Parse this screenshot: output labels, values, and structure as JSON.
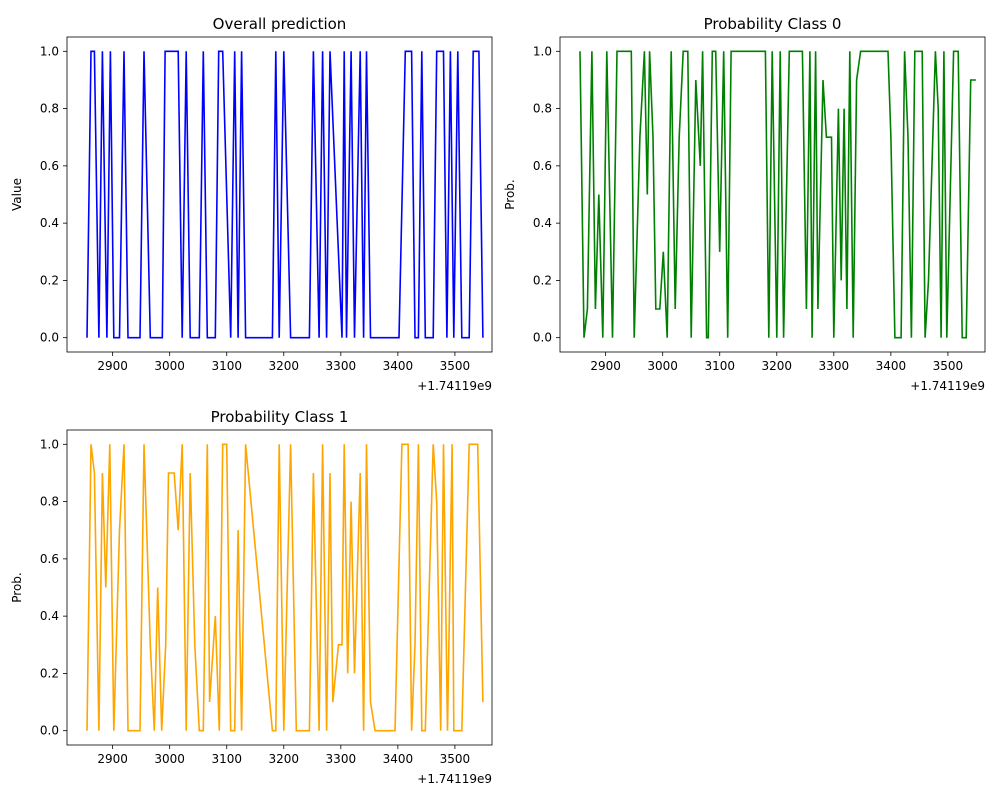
{
  "chart_data": [
    {
      "type": "line",
      "title": "Overall prediction",
      "ylabel": "Value",
      "xlabel": "",
      "offset_label": "+1.74119e9",
      "color": "#0000ff",
      "xlim": [
        2820,
        3565
      ],
      "ylim": [
        -0.05,
        1.05
      ],
      "xticks": [
        2900,
        3000,
        3100,
        3200,
        3300,
        3400,
        3500
      ],
      "yticks": [
        "0.0",
        "0.2",
        "0.4",
        "0.6",
        "0.8",
        "1.0"
      ],
      "grid": false,
      "x": [
        2855,
        2862,
        2868,
        2876,
        2882,
        2890,
        2896,
        2902,
        2912,
        2920,
        2927,
        2948,
        2955,
        2966,
        2987,
        2992,
        3015,
        3022,
        3029,
        3036,
        3052,
        3059,
        3066,
        3080,
        3086,
        3093,
        3107,
        3114,
        3120,
        3126,
        3133,
        3180,
        3186,
        3192,
        3200,
        3212,
        3222,
        3245,
        3252,
        3262,
        3268,
        3275,
        3281,
        3302,
        3306,
        3310,
        3318,
        3324,
        3334,
        3340,
        3345,
        3352,
        3402,
        3413,
        3424,
        3430,
        3436,
        3442,
        3448,
        3462,
        3468,
        3480,
        3486,
        3492,
        3498,
        3505,
        3512,
        3525,
        3532,
        3542,
        3549
      ],
      "y": [
        0,
        1,
        1,
        0,
        1,
        0,
        1,
        0,
        0,
        1,
        0,
        0,
        1,
        0,
        0,
        1,
        1,
        0,
        1,
        0,
        0,
        1,
        0,
        0,
        1,
        1,
        0,
        1,
        0,
        1,
        0,
        0,
        1,
        0,
        1,
        0,
        0,
        0,
        1,
        0,
        1,
        0,
        1,
        0,
        1,
        0,
        1,
        0,
        1,
        0,
        1,
        0,
        0,
        1,
        1,
        0,
        0,
        1,
        0,
        0,
        1,
        1,
        0,
        1,
        0,
        1,
        0,
        0,
        1,
        1,
        0
      ]
    },
    {
      "type": "line",
      "title": "Probability Class 0",
      "ylabel": "Prob.",
      "xlabel": "",
      "offset_label": "+1.74119e9",
      "color": "#008000",
      "xlim": [
        2820,
        3565
      ],
      "ylim": [
        -0.05,
        1.05
      ],
      "xticks": [
        2900,
        3000,
        3100,
        3200,
        3300,
        3400,
        3500
      ],
      "yticks": [
        "0.0",
        "0.2",
        "0.4",
        "0.6",
        "0.8",
        "1.0"
      ],
      "grid": false,
      "x": [
        2855,
        2862,
        2868,
        2876,
        2882,
        2888,
        2895,
        2902,
        2912,
        2920,
        2927,
        2945,
        2950,
        2960,
        2968,
        2973,
        2977,
        2983,
        2988,
        2995,
        3001,
        3008,
        3015,
        3022,
        3029,
        3036,
        3044,
        3050,
        3058,
        3066,
        3070,
        3077,
        3080,
        3087,
        3093,
        3100,
        3107,
        3114,
        3120,
        3126,
        3133,
        3180,
        3186,
        3192,
        3200,
        3206,
        3212,
        3222,
        3245,
        3252,
        3258,
        3262,
        3268,
        3272,
        3281,
        3287,
        3296,
        3300,
        3308,
        3313,
        3318,
        3323,
        3328,
        3334,
        3340,
        3347,
        3352,
        3360,
        3395,
        3400,
        3407,
        3418,
        3424,
        3430,
        3436,
        3442,
        3455,
        3460,
        3466,
        3478,
        3483,
        3488,
        3493,
        3498,
        3510,
        3518,
        3525,
        3532,
        3540,
        3549
      ],
      "y": [
        1,
        0,
        0.1,
        1,
        0.1,
        0.5,
        0,
        1,
        0,
        1,
        1,
        1,
        0,
        0.7,
        1,
        0.5,
        1,
        0.7,
        0.1,
        0.1,
        0.3,
        0,
        1,
        0.1,
        0.7,
        1,
        1,
        0,
        0.9,
        0.6,
        1,
        0,
        0,
        1,
        1,
        0.3,
        1,
        0,
        1,
        1,
        1,
        1,
        0,
        1,
        0,
        1,
        0,
        1,
        1,
        0.1,
        1,
        0,
        1,
        0.1,
        0.9,
        0.7,
        0.7,
        0,
        0.8,
        0.2,
        0.8,
        0.1,
        1,
        0,
        0.9,
        1,
        1,
        1,
        1,
        0.7,
        0,
        0,
        1,
        0.7,
        0,
        1,
        1,
        0,
        0.2,
        1,
        0.8,
        0,
        1,
        0,
        1,
        1,
        0,
        0,
        0.9,
        0.9
      ]
    },
    {
      "type": "line",
      "title": "Probability Class 1",
      "ylabel": "Prob.",
      "xlabel": "",
      "offset_label": "+1.74119e9",
      "color": "#ffa500",
      "xlim": [
        2820,
        3565
      ],
      "ylim": [
        -0.05,
        1.05
      ],
      "xticks": [
        2900,
        3000,
        3100,
        3200,
        3300,
        3400,
        3500
      ],
      "yticks": [
        "0.0",
        "0.2",
        "0.4",
        "0.6",
        "0.8",
        "1.0"
      ],
      "grid": false,
      "x": [
        2855,
        2862,
        2868,
        2876,
        2882,
        2888,
        2895,
        2902,
        2912,
        2920,
        2927,
        2948,
        2955,
        2966,
        2973,
        2979,
        2986,
        2993,
        2998,
        3008,
        3015,
        3022,
        3029,
        3036,
        3044,
        3052,
        3059,
        3066,
        3070,
        3080,
        3087,
        3093,
        3100,
        3107,
        3114,
        3120,
        3126,
        3133,
        3180,
        3186,
        3192,
        3200,
        3212,
        3222,
        3245,
        3252,
        3262,
        3268,
        3275,
        3281,
        3286,
        3296,
        3302,
        3306,
        3312,
        3318,
        3324,
        3334,
        3340,
        3345,
        3352,
        3360,
        3395,
        3407,
        3418,
        3424,
        3430,
        3436,
        3442,
        3448,
        3462,
        3468,
        3475,
        3480,
        3487,
        3495,
        3498,
        3505,
        3512,
        3525,
        3532,
        3540,
        3549
      ],
      "y": [
        0,
        1,
        0.9,
        0,
        0.9,
        0.5,
        1,
        0,
        0.7,
        1,
        0,
        0,
        1,
        0.3,
        0,
        0.5,
        0,
        0.3,
        0.9,
        0.9,
        0.7,
        1,
        0,
        0.9,
        0.3,
        0,
        0,
        1,
        0.1,
        0.4,
        0,
        1,
        1,
        0,
        0,
        0.7,
        0,
        1,
        0,
        0,
        1,
        0,
        1,
        0,
        0,
        0.9,
        0,
        1,
        0,
        0.9,
        0.1,
        0.3,
        0.3,
        1,
        0.2,
        0.8,
        0.2,
        0.9,
        0,
        1,
        0.1,
        0,
        0,
        1,
        1,
        0,
        0.3,
        1,
        0,
        0,
        1,
        0.8,
        0,
        1,
        0,
        1,
        0,
        0,
        0,
        1,
        1,
        1,
        0.1
      ]
    }
  ]
}
